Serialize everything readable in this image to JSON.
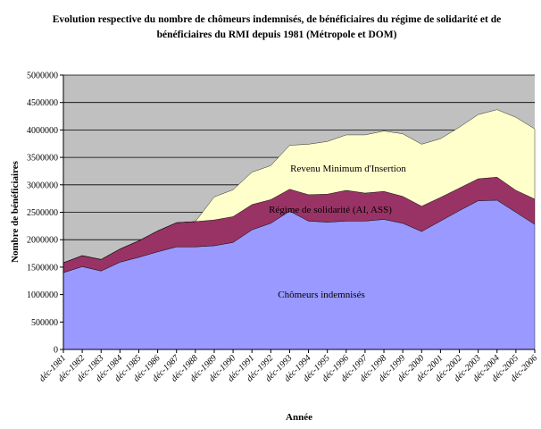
{
  "title_line1": "Evolution respective du nombre de chômeurs indemnisés, de bénéficiaires du régime de solidarité et de",
  "title_line2": "bénéficiaires du RMI depuis 1981 (Métropole et DOM)",
  "chart_data": {
    "type": "area",
    "stacked": true,
    "xlabel": "Année",
    "ylabel": "Nombre de bénéficiaires",
    "ylim": [
      0,
      5000000
    ],
    "yticks": [
      0,
      500000,
      1000000,
      1500000,
      2000000,
      2500000,
      3000000,
      3500000,
      4000000,
      4500000,
      5000000
    ],
    "grid": true,
    "legend": "none",
    "plot_background": "#c0c0c0",
    "categories": [
      "déc-1981",
      "déc-1982",
      "déc-1983",
      "déc-1984",
      "déc-1985",
      "déc-1986",
      "déc-1987",
      "déc-1988",
      "déc-1989",
      "déc-1990",
      "déc-1991",
      "déc-1992",
      "déc-1993",
      "déc-1994",
      "déc-1995",
      "déc-1996",
      "déc-1997",
      "déc-1998",
      "déc-1999",
      "déc-2000",
      "déc-2001",
      "déc-2002",
      "déc-2003",
      "déc-2004",
      "déc-2005",
      "déc-2006"
    ],
    "series": [
      {
        "name": "Chômeurs indemnisés",
        "color": "#9999ff",
        "values": [
          1400000,
          1510000,
          1430000,
          1590000,
          1680000,
          1780000,
          1870000,
          1870000,
          1890000,
          1950000,
          2180000,
          2300000,
          2520000,
          2340000,
          2320000,
          2340000,
          2340000,
          2370000,
          2300000,
          2150000,
          2340000,
          2530000,
          2710000,
          2720000,
          2500000,
          2280000
        ]
      },
      {
        "name": "Régime de solidarité (AI, ASS)",
        "color": "#993366",
        "values": [
          180000,
          200000,
          210000,
          240000,
          300000,
          380000,
          440000,
          460000,
          470000,
          470000,
          460000,
          430000,
          400000,
          480000,
          510000,
          560000,
          510000,
          510000,
          490000,
          460000,
          430000,
          410000,
          400000,
          420000,
          400000,
          460000
        ]
      },
      {
        "name": "Revenu Minimum d'Insertion",
        "color": "#ffffcc",
        "values": [
          0,
          0,
          0,
          0,
          0,
          0,
          0,
          0,
          420000,
          490000,
          590000,
          620000,
          800000,
          920000,
          960000,
          1010000,
          1060000,
          1100000,
          1140000,
          1130000,
          1070000,
          1110000,
          1170000,
          1230000,
          1330000,
          1280000
        ]
      }
    ],
    "series_labels": [
      "Revenu Minimum d'Insertion",
      "Régime de solidarité (AI, ASS)",
      "Chômeurs indemnisés"
    ]
  }
}
